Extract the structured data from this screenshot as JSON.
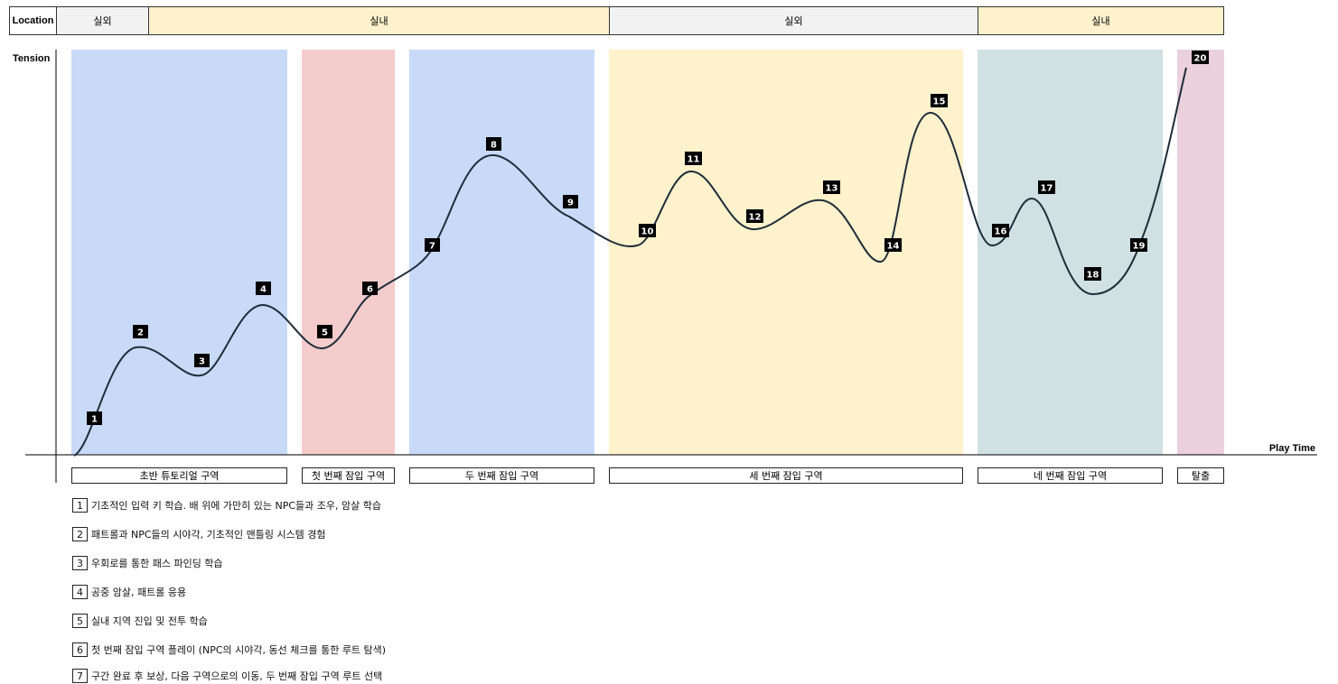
{
  "header": {
    "location_label": "Location",
    "locations": [
      {
        "label": "실외",
        "color": "#f2f2f2"
      },
      {
        "label": "실내",
        "color": "#fff2cc"
      },
      {
        "label": "실외",
        "color": "#f2f2f2"
      },
      {
        "label": "실내",
        "color": "#fff2cc"
      }
    ]
  },
  "axes": {
    "y_label": "Tension",
    "x_label": "Play Time"
  },
  "zones": [
    {
      "label": "초반 튜토리얼 구역",
      "color": "#c9daf8"
    },
    {
      "label": "첫 번째 잠입 구역",
      "color": "#f4cccc"
    },
    {
      "label": "두 번째 잠입 구역",
      "color": "#c9daf8"
    },
    {
      "label": "세 번째 잠입 구역",
      "color": "#fff2cc"
    },
    {
      "label": "네 번째 잠입 구역",
      "color": "#d0e0e3"
    },
    {
      "label": "탈출",
      "color": "#ead1dc"
    }
  ],
  "markers": [
    "1",
    "2",
    "3",
    "4",
    "5",
    "6",
    "7",
    "8",
    "9",
    "10",
    "11",
    "12",
    "13",
    "14",
    "15",
    "16",
    "17",
    "18",
    "19",
    "20"
  ],
  "notes": [
    {
      "num": "1",
      "text": "기초적인 입력 키 학습. 배 위에 가만히 있는 NPC들과 조우, 암살 학습"
    },
    {
      "num": "2",
      "text": "패트롤과 NPC들의 시야각, 기초적인 맨틀링 시스템 경험"
    },
    {
      "num": "3",
      "text": "우회로를 통한 패스 파인딩 학습"
    },
    {
      "num": "4",
      "text": "공중 암살, 패트롤 응용"
    },
    {
      "num": "5",
      "text": "실내 지역 진입 및 전투 학습"
    },
    {
      "num": "6",
      "text": "첫 번째 잠입 구역 플레이 (NPC의 시야각, 동선 체크를 통한 루트 탐색)"
    },
    {
      "num": "7",
      "text": "구간 완료 후 보상, 다음 구역으로의 이동, 두 번째 잠입 구역 루트 선택"
    }
  ],
  "colors": {
    "curve": "#1f2d3a",
    "marker_bg": "#000000",
    "marker_text": "#ffffff"
  }
}
